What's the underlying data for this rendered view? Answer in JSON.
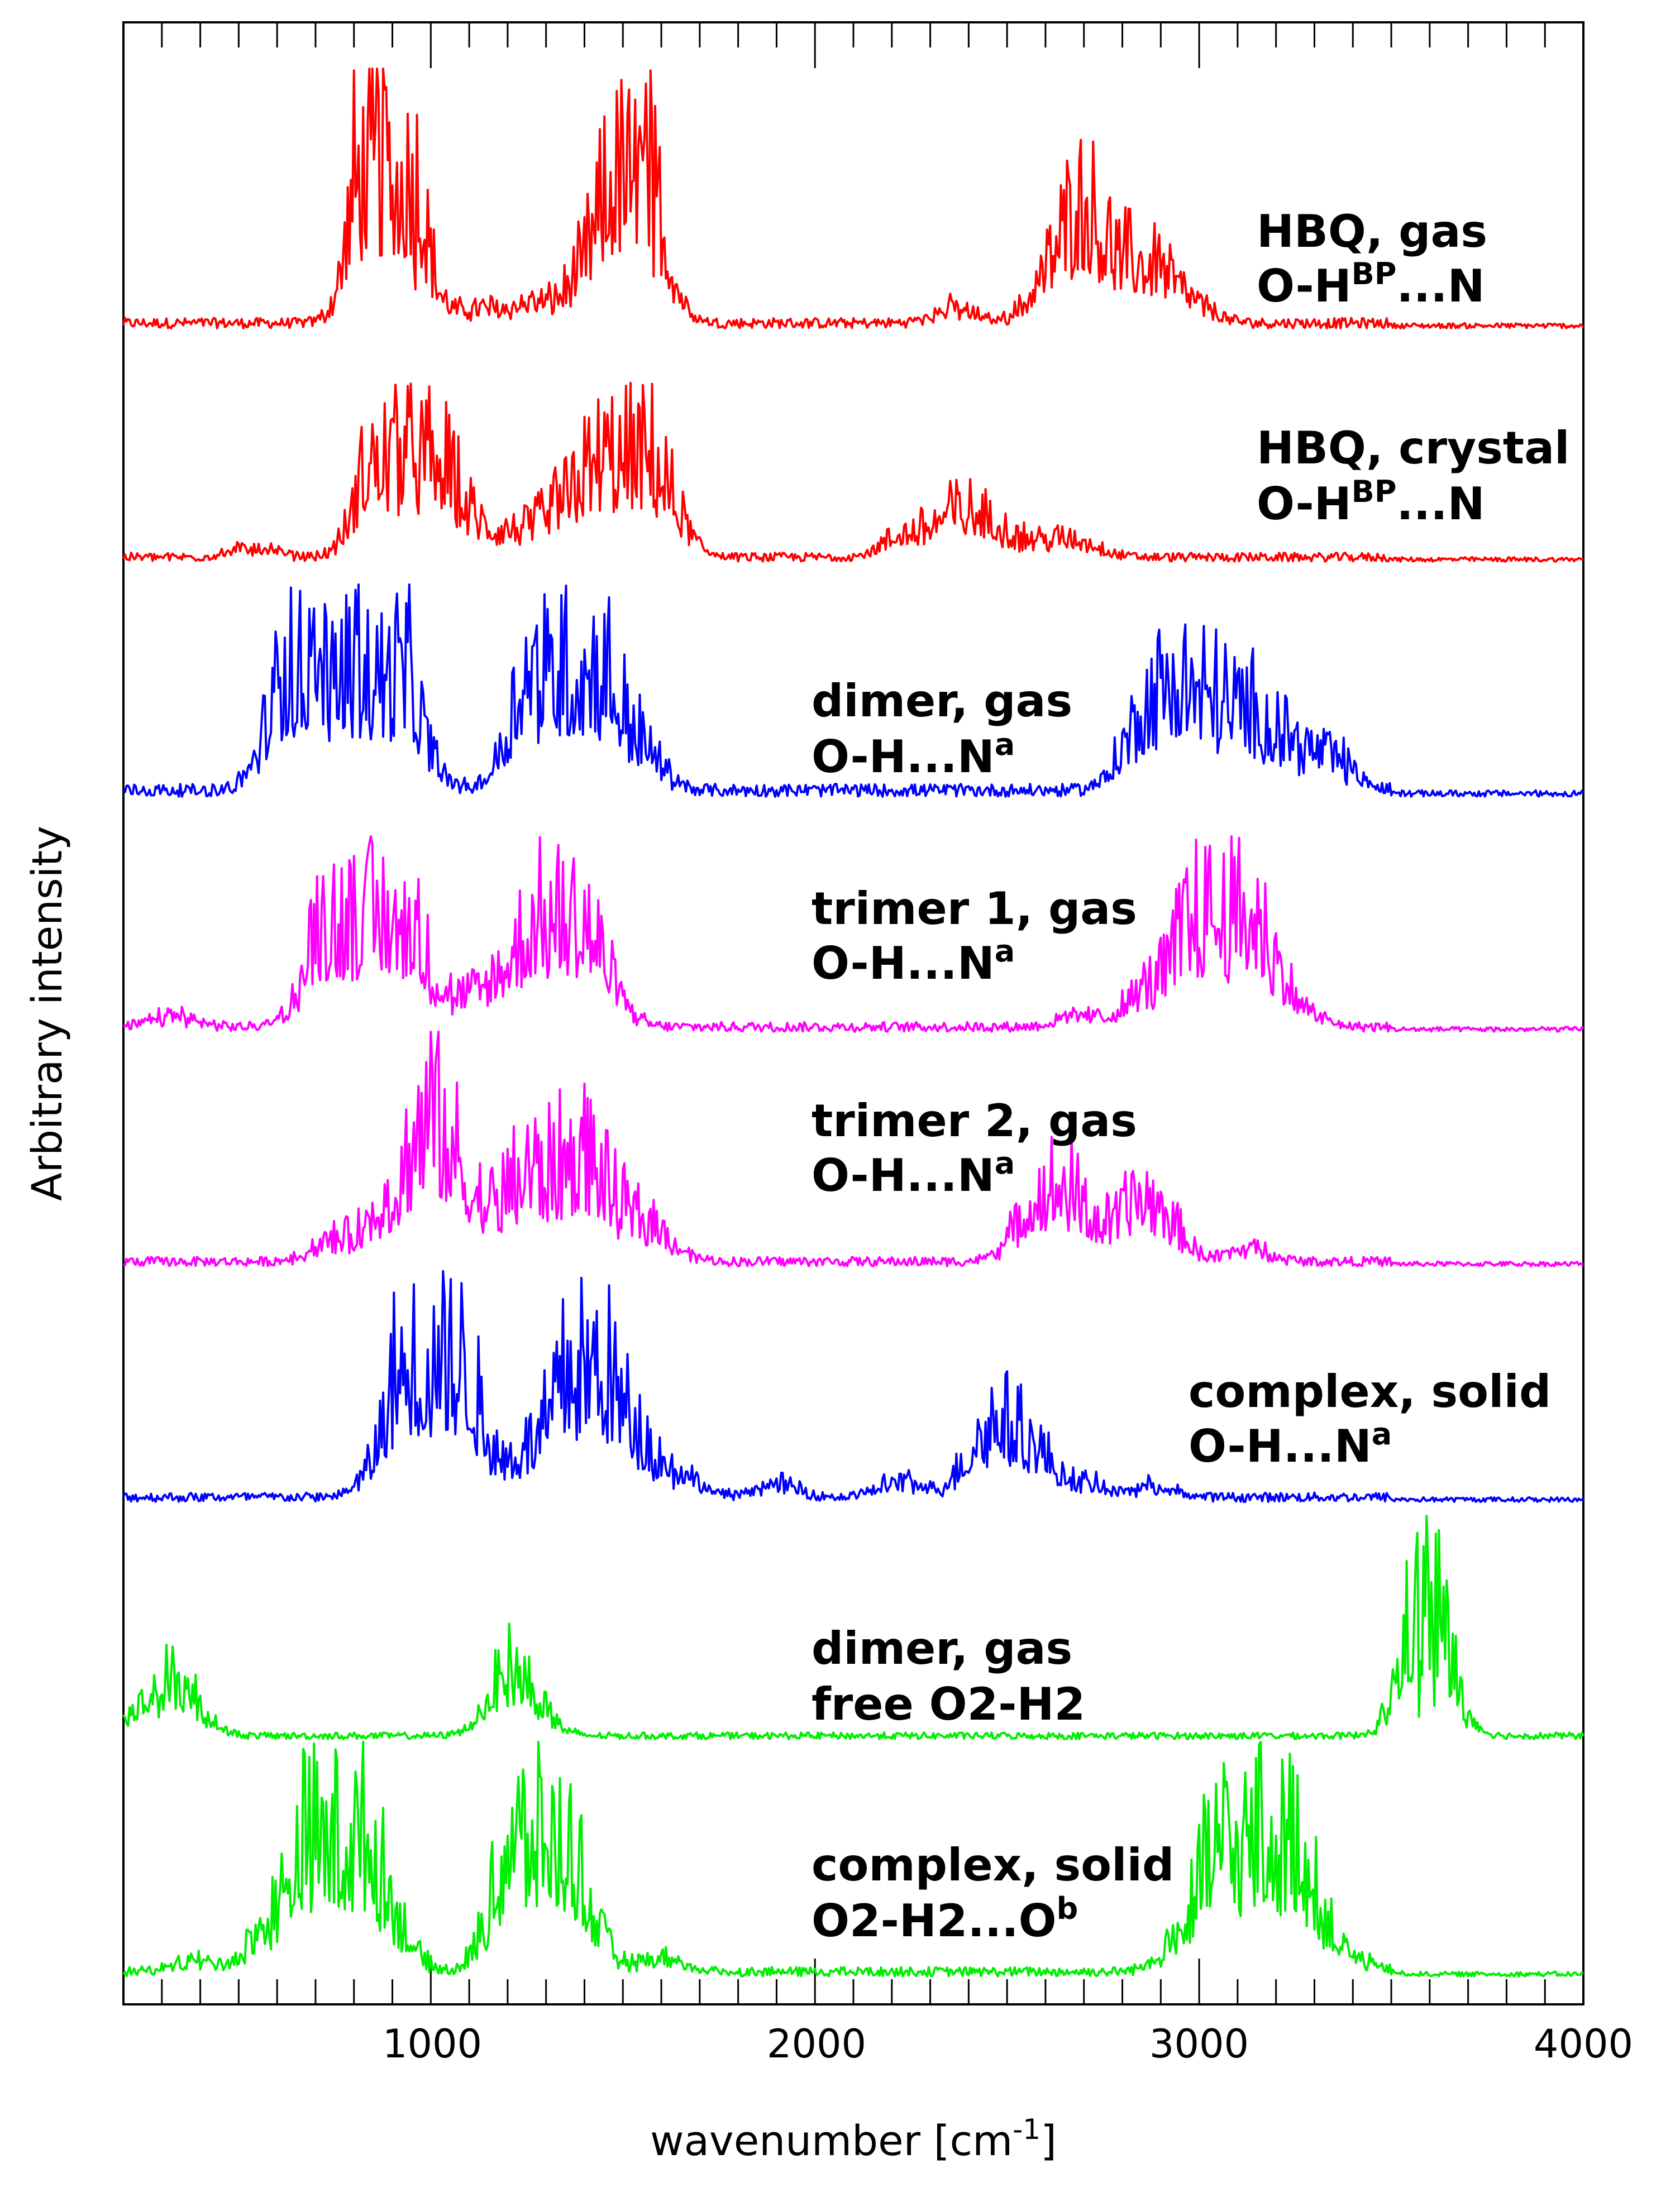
{
  "chart_data": {
    "type": "line",
    "title": "",
    "xlabel": "wavenumber [cm",
    "xlabel_sup": "-1",
    "xlabel_end": "]",
    "ylabel": "Arbitrary intensity",
    "xlim": [
      200,
      4000
    ],
    "x_ticks": [
      "1000",
      "2000",
      "3000",
      "4000"
    ],
    "x_tick_values": [
      1000,
      2000,
      3000,
      4000
    ],
    "grid": false,
    "series": [
      {
        "name": "HBQ, gas",
        "label_line1": "HBQ, gas",
        "label_line2_main": "O-H",
        "label_line2_sup": "BP",
        "label_line2_tail": "...N",
        "color": "#ff0000",
        "peaks": [
          [
            860,
            1.0
          ],
          [
            880,
            0.92
          ],
          [
            900,
            0.55
          ],
          [
            920,
            0.38
          ],
          [
            960,
            0.15
          ],
          [
            1130,
            0.1
          ],
          [
            1260,
            0.12
          ],
          [
            1390,
            0.2
          ],
          [
            1460,
            0.35
          ],
          [
            1520,
            0.45
          ],
          [
            1540,
            0.7
          ],
          [
            1580,
            0.2
          ],
          [
            2360,
            0.1
          ],
          [
            2600,
            0.2
          ],
          [
            2680,
            0.45
          ],
          [
            2720,
            0.3
          ],
          [
            2800,
            0.25
          ],
          [
            2890,
            0.3
          ],
          [
            2990,
            0.1
          ]
        ],
        "noise_mean": 0.04
      },
      {
        "name": "HBQ, crystal",
        "label_line1": "HBQ, crystal",
        "label_line2_main": "O-H",
        "label_line2_sup": "BP",
        "label_line2_tail": "...N",
        "color": "#ff0000",
        "peaks": [
          [
            540,
            0.1
          ],
          [
            860,
            0.7
          ],
          [
            910,
            0.85
          ],
          [
            960,
            0.55
          ],
          [
            1020,
            0.45
          ],
          [
            1080,
            0.3
          ],
          [
            1200,
            0.2
          ],
          [
            1300,
            0.2
          ],
          [
            1360,
            0.25
          ],
          [
            1420,
            0.55
          ],
          [
            1500,
            0.55
          ],
          [
            1560,
            0.6
          ],
          [
            1620,
            0.3
          ],
          [
            2230,
            0.2
          ],
          [
            2340,
            0.25
          ],
          [
            2400,
            0.25
          ],
          [
            2480,
            0.2
          ],
          [
            2600,
            0.15
          ],
          [
            2700,
            0.12
          ]
        ],
        "noise_mean": 0.05
      },
      {
        "name": "dimer, gas",
        "label_line1": "dimer, gas",
        "label_line2_main": "O-H...N",
        "label_line2_sup": "a",
        "label_line2_tail": "",
        "color": "#0000ff",
        "peaks": [
          [
            620,
            0.75
          ],
          [
            700,
            0.5
          ],
          [
            740,
            0.65
          ],
          [
            780,
            0.95
          ],
          [
            810,
            1.0
          ],
          [
            850,
            0.5
          ],
          [
            890,
            0.8
          ],
          [
            960,
            0.3
          ],
          [
            1240,
            0.5
          ],
          [
            1300,
            0.55
          ],
          [
            1340,
            0.95
          ],
          [
            1380,
            0.55
          ],
          [
            1420,
            0.65
          ],
          [
            1500,
            0.3
          ],
          [
            1560,
            0.2
          ],
          [
            2840,
            0.4
          ],
          [
            2920,
            0.55
          ],
          [
            3000,
            0.55
          ],
          [
            3080,
            0.35
          ],
          [
            3150,
            0.4
          ],
          [
            3240,
            0.3
          ],
          [
            3350,
            0.25
          ]
        ],
        "noise_mean": 0.06
      },
      {
        "name": "trimer 1, gas",
        "label_line1": "trimer 1, gas",
        "label_line2_main": "O-H...N",
        "label_line2_sup": "a",
        "label_line2_tail": "",
        "color": "#ff00ff",
        "peaks": [
          [
            330,
            0.1
          ],
          [
            700,
            0.35
          ],
          [
            760,
            0.55
          ],
          [
            800,
            0.9
          ],
          [
            830,
            0.85
          ],
          [
            880,
            0.55
          ],
          [
            920,
            0.5
          ],
          [
            980,
            0.3
          ],
          [
            1100,
            0.2
          ],
          [
            1200,
            0.35
          ],
          [
            1280,
            0.6
          ],
          [
            1350,
            0.55
          ],
          [
            1390,
            0.4
          ],
          [
            1450,
            0.3
          ],
          [
            2690,
            0.1
          ],
          [
            2860,
            0.3
          ],
          [
            2980,
            0.6
          ],
          [
            3030,
            0.55
          ],
          [
            3080,
            0.4
          ],
          [
            3120,
            0.55
          ],
          [
            3180,
            0.35
          ],
          [
            3270,
            0.1
          ]
        ],
        "noise_mean": 0.05
      },
      {
        "name": "trimer 2, gas",
        "label_line1": "trimer 2, gas",
        "label_line2_main": "O-H...N",
        "label_line2_sup": "a",
        "label_line2_tail": "",
        "color": "#ff00ff",
        "peaks": [
          [
            740,
            0.15
          ],
          [
            880,
            0.35
          ],
          [
            1000,
            1.0
          ],
          [
            1050,
            0.3
          ],
          [
            1140,
            0.25
          ],
          [
            1250,
            0.6
          ],
          [
            1370,
            0.55
          ],
          [
            1420,
            0.35
          ],
          [
            1520,
            0.25
          ],
          [
            1600,
            0.15
          ],
          [
            2550,
            0.2
          ],
          [
            2610,
            0.3
          ],
          [
            2680,
            0.35
          ],
          [
            2830,
            0.35
          ],
          [
            2910,
            0.25
          ],
          [
            3130,
            0.1
          ]
        ],
        "noise_mean": 0.04
      },
      {
        "name": "complex, solid",
        "label_line1": "complex, solid",
        "label_line2_main": "O-H...N",
        "label_line2_sup": "a",
        "label_line2_tail": "",
        "color": "#0000ff",
        "peaks": [
          [
            880,
            0.2
          ],
          [
            950,
            0.6
          ],
          [
            990,
            0.65
          ],
          [
            1020,
            0.75
          ],
          [
            1050,
            0.95
          ],
          [
            1120,
            0.2
          ],
          [
            1240,
            0.25
          ],
          [
            1340,
            0.4
          ],
          [
            1400,
            0.6
          ],
          [
            1440,
            0.45
          ],
          [
            1530,
            0.4
          ],
          [
            1650,
            0.15
          ],
          [
            1900,
            0.1
          ],
          [
            2220,
            0.12
          ],
          [
            2430,
            0.3
          ],
          [
            2480,
            0.25
          ],
          [
            2560,
            0.35
          ],
          [
            2700,
            0.1
          ],
          [
            2880,
            0.08
          ]
        ],
        "noise_mean": 0.04
      },
      {
        "name": "dimer, gas",
        "label_line1": "dimer, gas",
        "label_line2_main": "free O2-H2",
        "label_line2_sup": "",
        "label_line2_tail": "",
        "color": "#00ee00",
        "peaks": [
          [
            230,
            0.1
          ],
          [
            300,
            0.2
          ],
          [
            360,
            0.28
          ],
          [
            1190,
            0.2
          ],
          [
            1210,
            0.25
          ],
          [
            1260,
            0.15
          ],
          [
            3570,
            0.1
          ],
          [
            3590,
            1.0
          ],
          [
            3610,
            0.15
          ]
        ],
        "noise_mean": 0.03
      },
      {
        "name": "complex, solid",
        "label_line1": "complex, solid",
        "label_line2_main": "O2-H2...O",
        "label_line2_sup": "b",
        "label_line2_tail": "",
        "color": "#00ee00",
        "peaks": [
          [
            380,
            0.08
          ],
          [
            560,
            0.2
          ],
          [
            640,
            0.3
          ],
          [
            700,
            0.5
          ],
          [
            740,
            0.65
          ],
          [
            780,
            0.55
          ],
          [
            840,
            0.4
          ],
          [
            900,
            0.25
          ],
          [
            1200,
            0.6
          ],
          [
            1260,
            0.45
          ],
          [
            1300,
            0.55
          ],
          [
            1340,
            0.4
          ],
          [
            1400,
            0.3
          ],
          [
            1600,
            0.1
          ],
          [
            2950,
            0.2
          ],
          [
            3040,
            0.5
          ],
          [
            3100,
            0.6
          ],
          [
            3160,
            1.0
          ],
          [
            3200,
            0.6
          ],
          [
            3260,
            0.35
          ],
          [
            3300,
            0.2
          ],
          [
            3400,
            0.08
          ]
        ],
        "noise_mean": 0.04
      }
    ]
  }
}
